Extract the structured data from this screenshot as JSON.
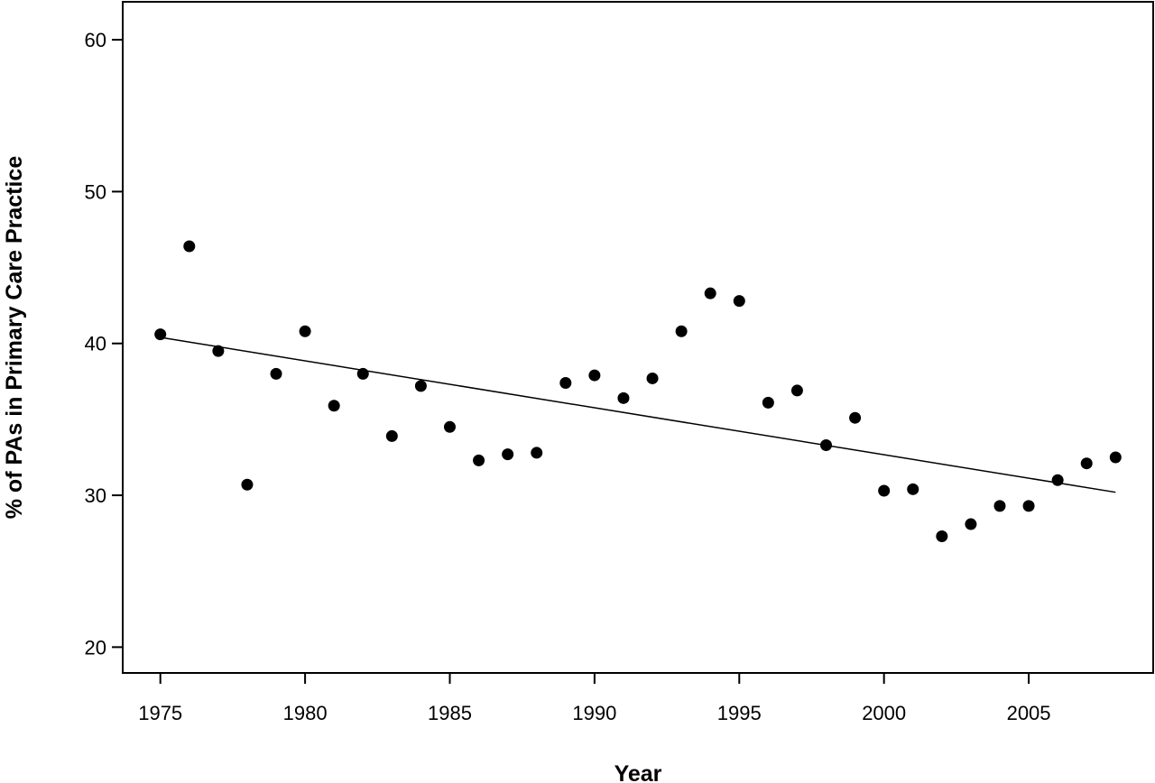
{
  "chart_data": {
    "type": "scatter",
    "title": "",
    "xlabel": "Year",
    "ylabel": "% of PAs in Primary Care Practice",
    "xlim": [
      1973.7,
      2009.3
    ],
    "ylim": [
      18.3,
      62.5
    ],
    "x_ticks": [
      1975,
      1980,
      1985,
      1990,
      1995,
      2000,
      2005
    ],
    "x_tick_labels": [
      "1975",
      "1980",
      "1985",
      "1990",
      "1995",
      "2000",
      "2005"
    ],
    "y_ticks": [
      20,
      30,
      40,
      50,
      60
    ],
    "y_tick_labels": [
      "20",
      "30",
      "40",
      "50",
      "60"
    ],
    "grid": false,
    "series": [
      {
        "x": [
          1975,
          1976,
          1977,
          1978,
          1979,
          1980,
          1981,
          1982,
          1983,
          1984,
          1985,
          1986,
          1987,
          1988,
          1989,
          1990,
          1991,
          1992,
          1993,
          1994,
          1995,
          1996,
          1997,
          1998,
          1999,
          2000,
          2001,
          2002,
          2003,
          2004,
          2005,
          2006,
          2007,
          2008
        ],
        "y": [
          40.6,
          46.4,
          39.5,
          30.7,
          38.0,
          40.8,
          35.9,
          38.0,
          33.9,
          37.2,
          34.5,
          32.3,
          32.7,
          32.8,
          37.4,
          37.9,
          36.4,
          37.7,
          40.8,
          43.3,
          42.8,
          36.1,
          36.9,
          33.3,
          35.1,
          30.3,
          30.4,
          27.3,
          28.1,
          29.3,
          29.3,
          31.0,
          32.1,
          32.5
        ],
        "color": "#000000"
      }
    ],
    "trendline": {
      "x": [
        1975,
        2008
      ],
      "y": [
        40.4,
        30.2
      ],
      "color": "#000000"
    }
  }
}
